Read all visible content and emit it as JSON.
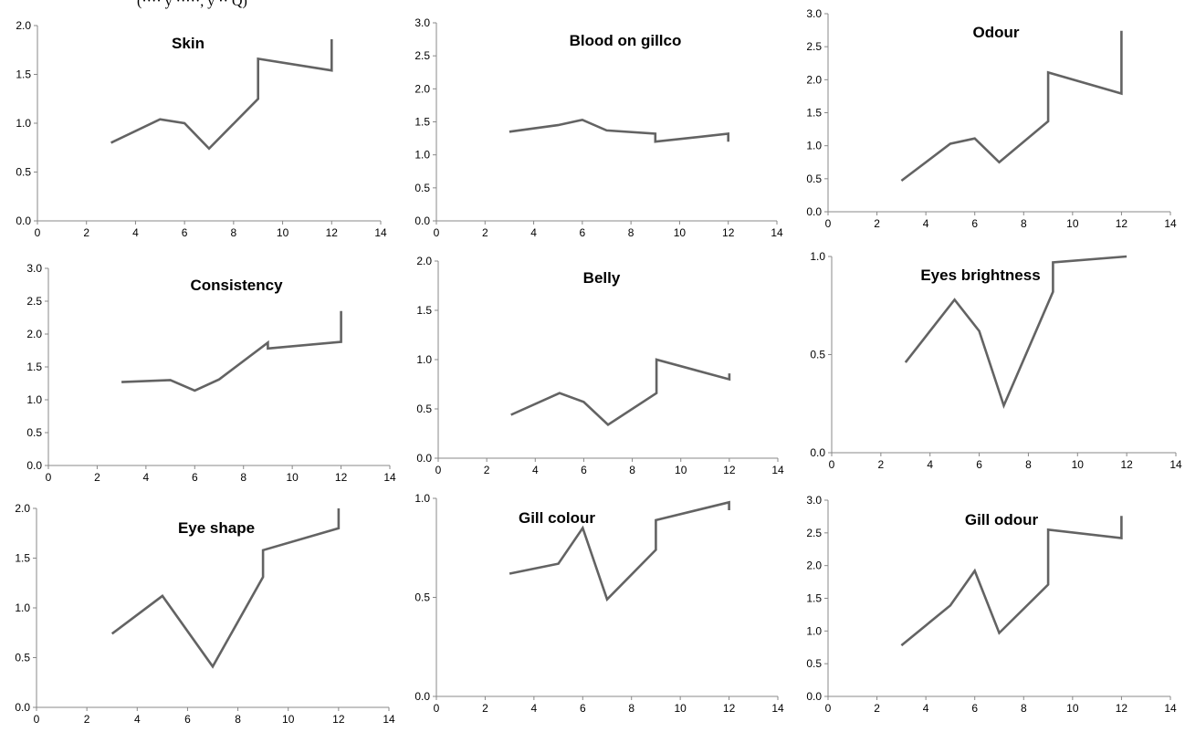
{
  "header_fragment": "(···· y ·····, y ·· Q)",
  "chart_data": [
    {
      "type": "line",
      "title": "Skin",
      "ylim": [
        0,
        2
      ],
      "yticks": [
        "0.0",
        "0.5",
        "1.0",
        "1.5",
        "2.0"
      ],
      "xlim": [
        0,
        14
      ],
      "xticks": [
        "0",
        "2",
        "4",
        "6",
        "8",
        "10",
        "12",
        "14"
      ],
      "x": [
        3,
        5,
        6,
        7,
        9,
        9,
        12,
        12
      ],
      "y": [
        0.8,
        1.04,
        1.0,
        0.74,
        1.25,
        1.66,
        1.54,
        1.86
      ]
    },
    {
      "type": "line",
      "title": "Blood on gillco",
      "ylim": [
        0,
        3
      ],
      "yticks": [
        "0.0",
        "0.5",
        "1.0",
        "1.5",
        "2.0",
        "2.5",
        "3.0"
      ],
      "xlim": [
        0,
        14
      ],
      "xticks": [
        "0",
        "2",
        "4",
        "6",
        "8",
        "10",
        "12",
        "14"
      ],
      "x": [
        3,
        5,
        6,
        7,
        9,
        9,
        12,
        12
      ],
      "y": [
        1.35,
        1.45,
        1.53,
        1.37,
        1.32,
        1.2,
        1.32,
        1.2
      ]
    },
    {
      "type": "line",
      "title": "Odour",
      "ylim": [
        0,
        3
      ],
      "yticks": [
        "0.0",
        "0.5",
        "1.0",
        "1.5",
        "2.0",
        "2.5",
        "3.0"
      ],
      "xlim": [
        0,
        14
      ],
      "xticks": [
        "0",
        "2",
        "4",
        "6",
        "8",
        "10",
        "12",
        "14"
      ],
      "x": [
        3,
        5,
        6,
        7,
        9,
        9,
        12,
        12
      ],
      "y": [
        0.47,
        1.03,
        1.11,
        0.75,
        1.37,
        2.11,
        1.79,
        2.74
      ]
    },
    {
      "type": "line",
      "title": "Consistency",
      "ylim": [
        0,
        3
      ],
      "yticks": [
        "0.0",
        "0.5",
        "1.0",
        "1.5",
        "2.0",
        "2.5",
        "3.0"
      ],
      "xlim": [
        0,
        14
      ],
      "xticks": [
        "0",
        "2",
        "4",
        "6",
        "8",
        "10",
        "12",
        "14"
      ],
      "x": [
        3,
        5,
        6,
        7,
        9,
        9,
        12,
        12
      ],
      "y": [
        1.27,
        1.3,
        1.14,
        1.31,
        1.87,
        1.78,
        1.88,
        2.35
      ]
    },
    {
      "type": "line",
      "title": "Belly",
      "ylim": [
        0,
        2
      ],
      "yticks": [
        "0.0",
        "0.5",
        "1.0",
        "1.5",
        "2.0"
      ],
      "xlim": [
        0,
        14
      ],
      "xticks": [
        "0",
        "2",
        "4",
        "6",
        "8",
        "10",
        "12",
        "14"
      ],
      "x": [
        3,
        5,
        6,
        7,
        9,
        9,
        12,
        12
      ],
      "y": [
        0.44,
        0.66,
        0.57,
        0.34,
        0.66,
        1.0,
        0.8,
        0.86
      ]
    },
    {
      "type": "line",
      "title": "Eyes brightness",
      "ylim": [
        0,
        1
      ],
      "yticks": [
        "0.0",
        "0.5",
        "1.0"
      ],
      "xlim": [
        0,
        14
      ],
      "xticks": [
        "0",
        "2",
        "4",
        "6",
        "8",
        "10",
        "12",
        "14"
      ],
      "x": [
        3,
        5,
        6,
        7,
        9,
        9,
        12
      ],
      "y": [
        0.46,
        0.78,
        0.62,
        0.24,
        0.82,
        0.97,
        1.0
      ]
    },
    {
      "type": "line",
      "title": "Eye shape",
      "ylim": [
        0,
        2
      ],
      "yticks": [
        "0.0",
        "0.5",
        "1.0",
        "1.5",
        "2.0"
      ],
      "xlim": [
        0,
        14
      ],
      "xticks": [
        "0",
        "2",
        "4",
        "6",
        "8",
        "10",
        "12",
        "14"
      ],
      "x": [
        3,
        5,
        7,
        9,
        9,
        12,
        12
      ],
      "y": [
        0.74,
        1.12,
        0.41,
        1.31,
        1.58,
        1.8,
        2.0
      ]
    },
    {
      "type": "line",
      "title": "Gill colour",
      "ylim": [
        0,
        1
      ],
      "yticks": [
        "0.0",
        "0.5",
        "1.0"
      ],
      "xlim": [
        0,
        14
      ],
      "xticks": [
        "0",
        "2",
        "4",
        "6",
        "8",
        "10",
        "12",
        "14"
      ],
      "x": [
        3,
        5,
        6,
        7,
        9,
        9,
        12,
        12
      ],
      "y": [
        0.62,
        0.67,
        0.85,
        0.49,
        0.74,
        0.89,
        0.98,
        0.94
      ]
    },
    {
      "type": "line",
      "title": "Gill odour",
      "ylim": [
        0,
        3
      ],
      "yticks": [
        "0.0",
        "0.5",
        "1.0",
        "1.5",
        "2.0",
        "2.5",
        "3.0"
      ],
      "xlim": [
        0,
        14
      ],
      "xticks": [
        "0",
        "2",
        "4",
        "6",
        "8",
        "10",
        "12",
        "14"
      ],
      "x": [
        3,
        5,
        6,
        7,
        9,
        9,
        12,
        12
      ],
      "y": [
        0.78,
        1.39,
        1.92,
        0.97,
        1.71,
        2.55,
        2.42,
        2.76
      ]
    }
  ]
}
